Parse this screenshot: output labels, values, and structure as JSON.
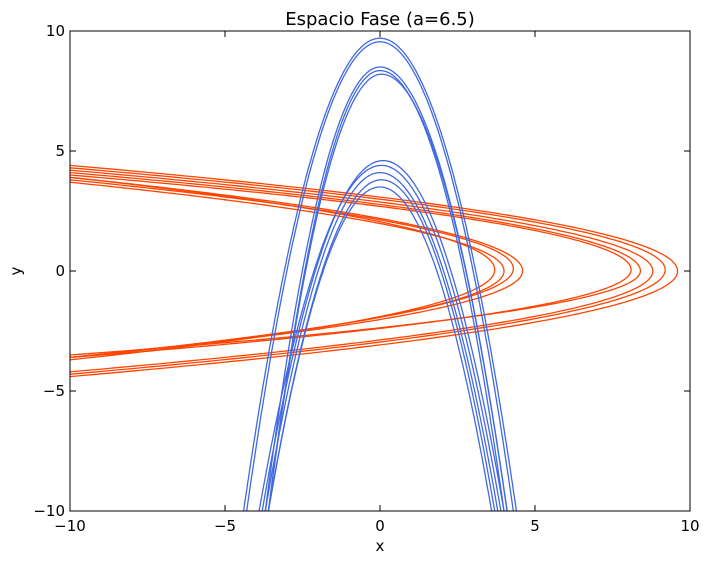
{
  "chart_data": {
    "type": "line",
    "title": "Espacio Fase (a=6.5)",
    "xlabel": "x",
    "ylabel": "y",
    "xlim": [
      -10,
      10
    ],
    "ylim": [
      -10,
      10
    ],
    "xticks": [
      -10,
      -5,
      0,
      5,
      10
    ],
    "yticks": [
      -10,
      -5,
      0,
      5,
      10
    ],
    "grid": false,
    "colors": {
      "orange": "#ff4500",
      "blue": "#4169e1"
    },
    "series": [
      {
        "color": "orange",
        "curves": [
          {
            "apex": 9.6,
            "k": 0.25,
            "y0": 0.0,
            "y1": 4.4,
            "y2": -4.4
          },
          {
            "apex": 9.2,
            "k": 0.25,
            "y0": 0.05,
            "y1": 4.3,
            "y2": -4.3
          },
          {
            "apex": 8.8,
            "k": 0.26,
            "y0": 0.0,
            "y1": 4.2,
            "y2": -4.2
          },
          {
            "apex": 8.4,
            "k": 0.23,
            "y0": 0.0,
            "y1": 4.1,
            "y2": -3.5
          },
          {
            "apex": 8.1,
            "k": 0.23,
            "y0": 0.05,
            "y1": 4.0,
            "y2": -3.6
          },
          {
            "apex": 4.6,
            "k": 0.14,
            "y0": 0.0,
            "y1": 3.9,
            "y2": -3.6
          },
          {
            "apex": 4.3,
            "k": 0.14,
            "y0": 0.1,
            "y1": 3.8,
            "y2": -3.6
          },
          {
            "apex": 4.0,
            "k": 0.14,
            "y0": 0.0,
            "y1": 3.7,
            "y2": -3.6
          },
          {
            "apex": 3.7,
            "k": 0.14,
            "y0": 0.05,
            "y1": 3.9,
            "y2": -3.7
          }
        ]
      },
      {
        "color": "blue",
        "curves": [
          {
            "apex": 9.7,
            "k": 0.24,
            "x0": 0.0,
            "xl": -4.4,
            "xr": 4.4
          },
          {
            "apex": 9.55,
            "k": 0.24,
            "x0": 0.0,
            "xl": -4.3,
            "xr": 4.3
          },
          {
            "apex": 8.5,
            "k": 0.23,
            "x0": 0.0,
            "xl": -3.7,
            "xr": 4.1
          },
          {
            "apex": 8.35,
            "k": 0.23,
            "x0": 0.0,
            "xl": -3.6,
            "xr": 4.0
          },
          {
            "apex": 8.2,
            "k": 0.23,
            "x0": 0.05,
            "xl": -3.6,
            "xr": 4.1
          },
          {
            "apex": 4.6,
            "k": 0.15,
            "x0": 0.1,
            "xl": -3.8,
            "xr": 4.0
          },
          {
            "apex": 4.4,
            "k": 0.15,
            "x0": 0.05,
            "xl": -3.9,
            "xr": 3.9
          },
          {
            "apex": 4.1,
            "k": 0.15,
            "x0": 0.0,
            "xl": -3.7,
            "xr": 3.8
          },
          {
            "apex": 3.8,
            "k": 0.15,
            "x0": 0.05,
            "xl": -3.6,
            "xr": 3.7
          },
          {
            "apex": 3.5,
            "k": 0.14,
            "x0": 0.0,
            "xl": -3.6,
            "xr": 3.6
          }
        ]
      }
    ]
  }
}
